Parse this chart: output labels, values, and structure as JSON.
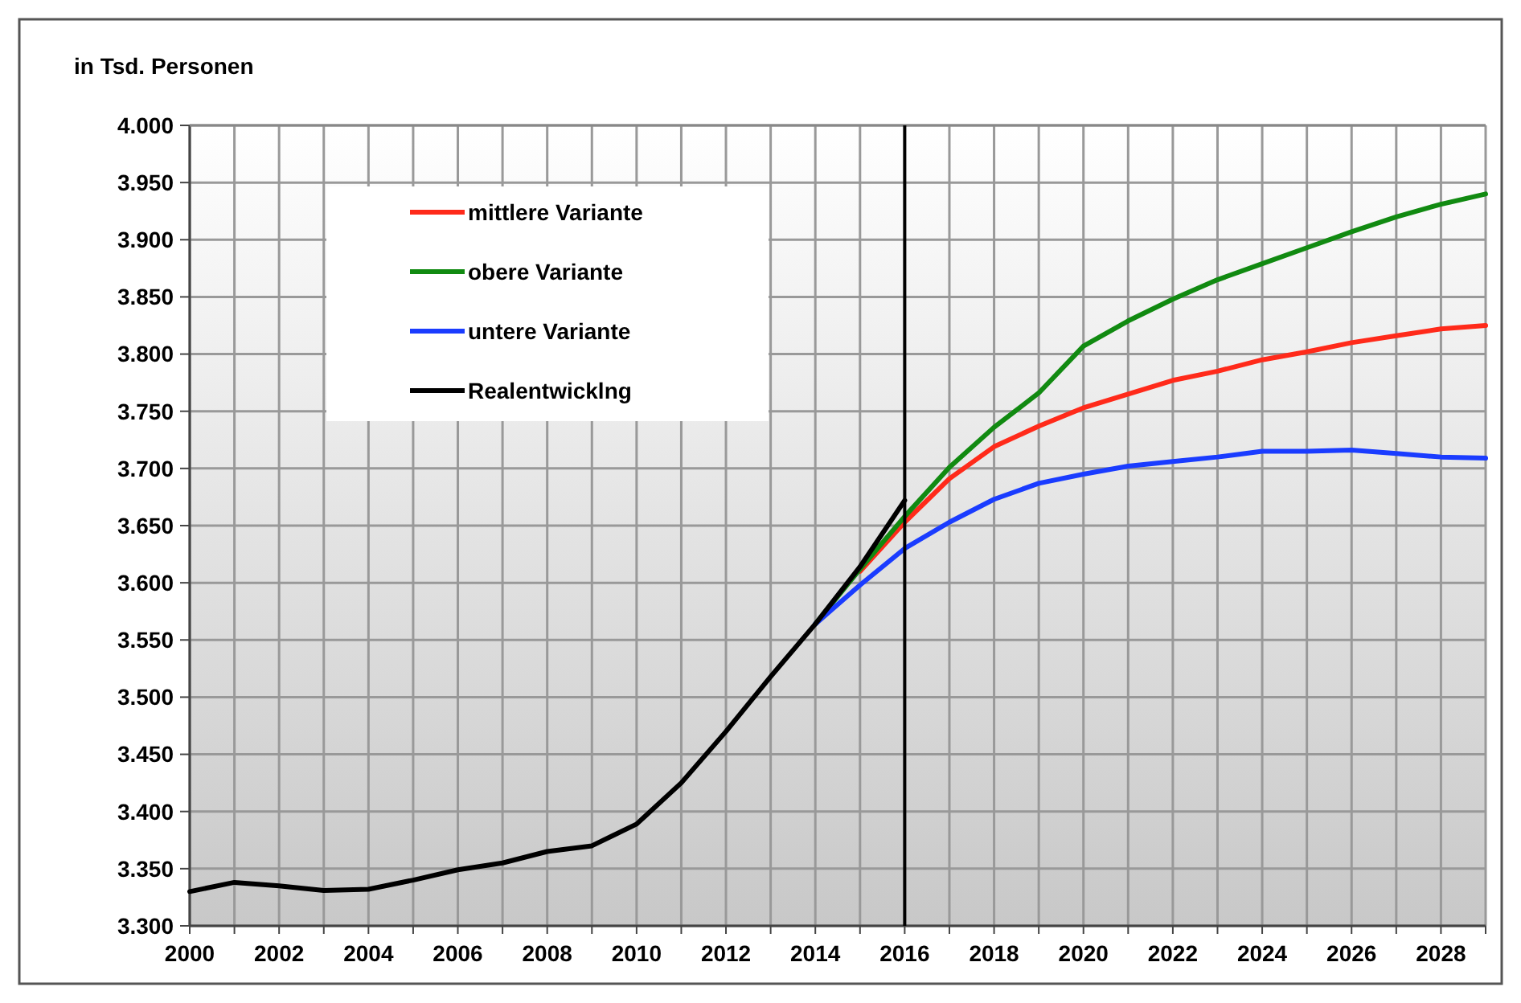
{
  "chart_data": {
    "type": "line",
    "ylabel": "in Tsd. Personen",
    "legend": "top left",
    "grid": true,
    "xlim": [
      2000,
      2029
    ],
    "ylim": [
      3300,
      4000
    ],
    "xticks": [
      2000,
      {
        "value": 2001,
        "label": null
      },
      2002,
      {
        "value": 2003,
        "label": null
      },
      2004,
      {
        "value": 2005,
        "label": null
      },
      2006,
      {
        "value": 2007,
        "label": null
      },
      2008,
      {
        "value": 2009,
        "label": null
      },
      2010,
      {
        "value": 2011,
        "label": null
      },
      2012,
      {
        "value": 2013,
        "label": null
      },
      2014,
      {
        "value": 2015,
        "label": null
      },
      2016,
      {
        "value": 2017,
        "label": null
      },
      2018,
      {
        "value": 2019,
        "label": null
      },
      2020,
      {
        "value": 2021,
        "label": null
      },
      2022,
      {
        "value": 2023,
        "label": null
      },
      2024,
      {
        "value": 2025,
        "label": null
      },
      2026,
      {
        "value": 2027,
        "label": null
      },
      2028,
      {
        "value": 2029,
        "label": null
      }
    ],
    "yticks": [
      {
        "value": 3300,
        "label": "3.300"
      },
      {
        "value": 3350,
        "label": "3.350"
      },
      {
        "value": 3400,
        "label": "3.400"
      },
      {
        "value": 3450,
        "label": "3.450"
      },
      {
        "value": 3500,
        "label": "3.500"
      },
      {
        "value": 3550,
        "label": "3.550"
      },
      {
        "value": 3600,
        "label": "3.600"
      },
      {
        "value": 3650,
        "label": "3.650"
      },
      {
        "value": 3700,
        "label": "3.700"
      },
      {
        "value": 3750,
        "label": "3.750"
      },
      {
        "value": 3800,
        "label": "3.800"
      },
      {
        "value": 3850,
        "label": "3.850"
      },
      {
        "value": 3900,
        "label": "3.900"
      },
      {
        "value": 3950,
        "label": "3.950"
      },
      {
        "value": 4000,
        "label": "4.000"
      }
    ],
    "ref_lines": [
      {
        "axis": "x",
        "value": 2016,
        "color": "#000000"
      }
    ],
    "series": [
      {
        "name": "mittlere Variante",
        "color": "#ff2a1a",
        "x": [
          2015,
          2016,
          2017,
          2018,
          2019,
          2020,
          2021,
          2022,
          2023,
          2024,
          2025,
          2026,
          2027,
          2028,
          2029
        ],
        "values": [
          3610,
          3653,
          3691,
          3719,
          3737,
          3753,
          3765,
          3777,
          3785,
          3795,
          3802,
          3810,
          3816,
          3822,
          3825
        ]
      },
      {
        "name": "obere Variante",
        "color": "#118a11",
        "x": [
          2014,
          2015,
          2016,
          2017,
          2018,
          2019,
          2020,
          2021,
          2022,
          2023,
          2024,
          2025,
          2026,
          2027,
          2028,
          2029
        ],
        "values": [
          3564,
          3612,
          3658,
          3701,
          3736,
          3766,
          3807,
          3829,
          3848,
          3865,
          3879,
          3893,
          3907,
          3920,
          3931,
          3940
        ]
      },
      {
        "name": "untere Variante",
        "color": "#1a3cff",
        "x": [
          2014,
          2015,
          2016,
          2017,
          2018,
          2019,
          2020,
          2021,
          2022,
          2023,
          2024,
          2025,
          2026,
          2027,
          2028,
          2029
        ],
        "values": [
          3564,
          3598,
          3630,
          3653,
          3673,
          3687,
          3695,
          3702,
          3706,
          3710,
          3715,
          3715,
          3716,
          3713,
          3710,
          3709
        ]
      },
      {
        "name": "Realentwicklng",
        "color": "#000000",
        "x": [
          2000,
          2001,
          2002,
          2003,
          2004,
          2005,
          2006,
          2007,
          2008,
          2009,
          2010,
          2011,
          2012,
          2013,
          2014,
          2015,
          2016
        ],
        "values": [
          3330,
          3338,
          3335,
          3331,
          3332,
          3340,
          3349,
          3355,
          3365,
          3370,
          3389,
          3425,
          3470,
          3518,
          3564,
          3614,
          3672
        ]
      }
    ]
  }
}
